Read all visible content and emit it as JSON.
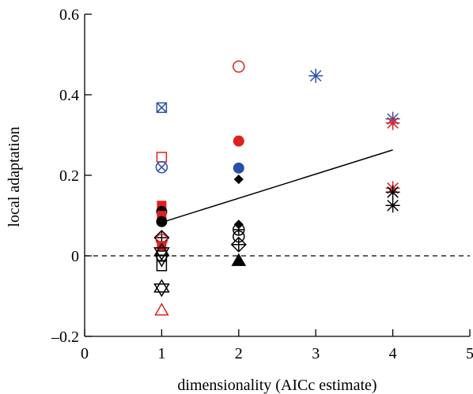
{
  "chart_data": {
    "type": "scatter",
    "title": "",
    "xlabel": "dimensionality (AICc estimate)",
    "ylabel": "local adaptation",
    "xlim": [
      0,
      5
    ],
    "ylim": [
      -0.2,
      0.6
    ],
    "xticks": [
      "0",
      "1",
      "2",
      "3",
      "4",
      "5"
    ],
    "yticks": [
      "–0.2",
      "0",
      "0.2",
      "0.4",
      "0.6"
    ],
    "xtick_values": [
      0,
      1,
      2,
      3,
      4,
      5
    ],
    "ytick_values": [
      -0.2,
      0,
      0.2,
      0.4,
      0.6
    ],
    "reference_line": {
      "y": 0,
      "style": "dashed"
    },
    "trend_line": {
      "x": [
        1,
        4
      ],
      "y": [
        0.083,
        0.263
      ]
    },
    "colors": {
      "red": "#e02020",
      "blue": "#2b4fa8",
      "black": "#000000"
    },
    "points": [
      {
        "x": 1,
        "y": 0.368,
        "marker": "square-x",
        "color": "blue"
      },
      {
        "x": 1,
        "y": 0.245,
        "marker": "square-open",
        "color": "red"
      },
      {
        "x": 1,
        "y": 0.22,
        "marker": "circle-x",
        "color": "blue"
      },
      {
        "x": 1,
        "y": 0.125,
        "marker": "square-filled",
        "color": "red"
      },
      {
        "x": 1,
        "y": 0.11,
        "marker": "circle-filled",
        "color": "black"
      },
      {
        "x": 1,
        "y": 0.1,
        "marker": "square-filled",
        "color": "red"
      },
      {
        "x": 1,
        "y": 0.085,
        "marker": "circle-filled",
        "color": "black"
      },
      {
        "x": 1,
        "y": 0.045,
        "marker": "diamond-plus",
        "color": "black"
      },
      {
        "x": 1,
        "y": 0.04,
        "marker": "circle-open",
        "color": "red"
      },
      {
        "x": 1,
        "y": 0.025,
        "marker": "square-filled",
        "color": "red"
      },
      {
        "x": 1,
        "y": 0.01,
        "marker": "star-of-david",
        "color": "black"
      },
      {
        "x": 1,
        "y": 0.0,
        "marker": "square-open",
        "color": "black"
      },
      {
        "x": 1,
        "y": -0.01,
        "marker": "triangle-down-open",
        "color": "black"
      },
      {
        "x": 1,
        "y": -0.025,
        "marker": "square-open",
        "color": "black"
      },
      {
        "x": 1,
        "y": -0.08,
        "marker": "star-of-david",
        "color": "black"
      },
      {
        "x": 1,
        "y": -0.135,
        "marker": "triangle-open",
        "color": "red"
      },
      {
        "x": 2,
        "y": 0.47,
        "marker": "circle-open",
        "color": "red"
      },
      {
        "x": 2,
        "y": 0.285,
        "marker": "circle-filled",
        "color": "red"
      },
      {
        "x": 2,
        "y": 0.218,
        "marker": "circle-filled",
        "color": "blue"
      },
      {
        "x": 2,
        "y": 0.19,
        "marker": "diamond-filled",
        "color": "black"
      },
      {
        "x": 2,
        "y": 0.078,
        "marker": "diamond-filled",
        "color": "black"
      },
      {
        "x": 2,
        "y": 0.065,
        "marker": "circle-plus",
        "color": "black"
      },
      {
        "x": 2,
        "y": 0.048,
        "marker": "circle-open",
        "color": "black"
      },
      {
        "x": 2,
        "y": 0.028,
        "marker": "diamond-plus",
        "color": "black"
      },
      {
        "x": 2,
        "y": -0.012,
        "marker": "triangle-filled",
        "color": "black"
      },
      {
        "x": 3,
        "y": 0.447,
        "marker": "asterisk",
        "color": "blue"
      },
      {
        "x": 4,
        "y": 0.34,
        "marker": "asterisk",
        "color": "blue"
      },
      {
        "x": 4,
        "y": 0.33,
        "marker": "asterisk",
        "color": "red"
      },
      {
        "x": 4,
        "y": 0.168,
        "marker": "asterisk",
        "color": "red"
      },
      {
        "x": 4,
        "y": 0.158,
        "marker": "asterisk",
        "color": "black"
      },
      {
        "x": 4,
        "y": 0.125,
        "marker": "asterisk",
        "color": "black"
      }
    ]
  }
}
